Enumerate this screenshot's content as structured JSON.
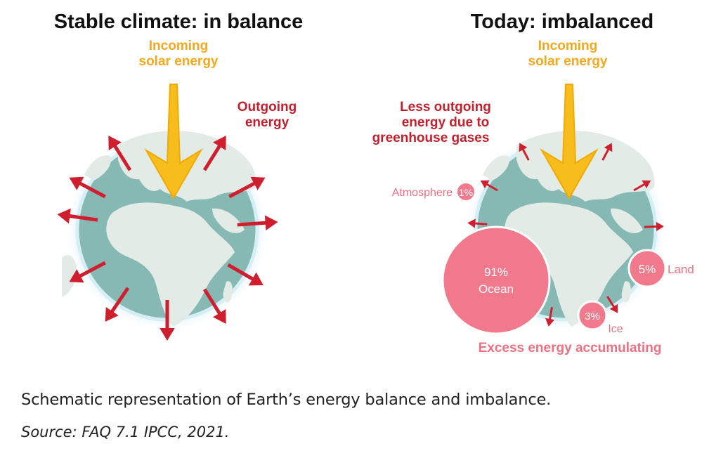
{
  "left_panel": {
    "title": "Stable climate: in balance",
    "incoming_line1": "Incoming",
    "incoming_line2": "solar energy",
    "outgoing_line1": "Outgoing",
    "outgoing_line2": "energy"
  },
  "right_panel": {
    "title": "Today: imbalanced",
    "incoming_line1": "Incoming",
    "incoming_line2": "solar energy",
    "less_line1": "Less outgoing",
    "less_line2": "energy due to",
    "less_line3": "greenhouse gases",
    "atmosphere_label": "Atmosphere",
    "atmosphere_pct": "1%",
    "ocean_pct": "91%",
    "ocean_label": "Ocean",
    "land_pct": "5%",
    "land_label": "Land",
    "ice_pct": "3%",
    "ice_label": "Ice",
    "excess_label": "Excess energy accumulating"
  },
  "caption": "Schematic representation of Earth’s energy balance and imbalance.",
  "source": "Source: FAQ 7.1 IPCC, 2021.",
  "colors": {
    "ocean": "#86b9b4",
    "land": "#e3ebe7",
    "halo": "#c7e6f2",
    "solar_arrow": "#f7bd1d",
    "outgoing_arrow": "#cf1f2e",
    "solar_text": "#f4a81d",
    "outgoing_text": "#c41f2c",
    "heat_circle": "#f07a8c",
    "heat_text": "#ef6f83"
  }
}
